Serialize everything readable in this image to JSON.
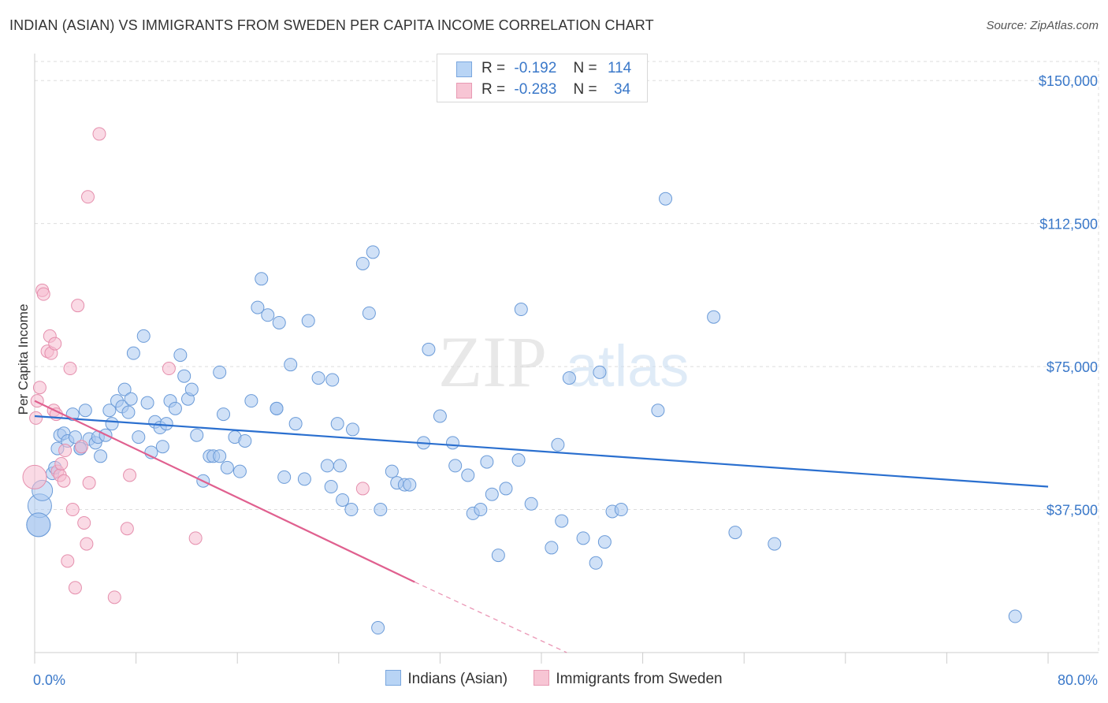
{
  "title": "INDIAN (ASIAN) VS IMMIGRANTS FROM SWEDEN PER CAPITA INCOME CORRELATION CHART",
  "source": "Source: ZipAtlas.com",
  "watermark": {
    "zip": "ZIP",
    "atlas": "atlas"
  },
  "stats_legend": [
    {
      "r_label": "R =",
      "r_value": "-0.192",
      "n_label": "N =",
      "n_value": "114",
      "fill": "#b8d4f5",
      "stroke": "#7aa7de"
    },
    {
      "r_label": "R =",
      "r_value": "-0.283",
      "n_label": "N =",
      "n_value": "34",
      "fill": "#f7c5d4",
      "stroke": "#e89ab3"
    }
  ],
  "bottom_legend": [
    {
      "label": "Indians (Asian)",
      "fill": "#b8d4f5",
      "stroke": "#7aa7de"
    },
    {
      "label": "Immigrants from Sweden",
      "fill": "#f7c5d4",
      "stroke": "#e89ab3"
    }
  ],
  "colors": {
    "blue_point": "#a9c9f0",
    "blue_stroke": "#6b9bd8",
    "blue_line": "#2a6fcf",
    "pink_point": "#f5bcd0",
    "pink_stroke": "#e58fad",
    "pink_line": "#e0608f",
    "tick_label": "#3a78c9",
    "grid": "#dddddd"
  },
  "chart_data": {
    "type": "scatter",
    "title": "INDIAN (ASIAN) VS IMMIGRANTS FROM SWEDEN PER CAPITA INCOME CORRELATION CHART",
    "xlabel": "",
    "ylabel": "Per Capita Income",
    "xlim": [
      0,
      80
    ],
    "ylim": [
      0,
      155000
    ],
    "x_tick_labels": [
      "0.0%",
      "80.0%"
    ],
    "y_ticks": [
      37500,
      75000,
      112500,
      150000
    ],
    "y_tick_labels": [
      "$37,500",
      "$75,000",
      "$112,500",
      "$150,000"
    ],
    "grid": true,
    "series": [
      {
        "name": "Indians (Asian)",
        "trend": {
          "x": [
            0,
            80
          ],
          "y": [
            62000,
            43500
          ]
        },
        "points": [
          [
            0.3,
            33500
          ],
          [
            0.4,
            38500
          ],
          [
            0.6,
            42500
          ],
          [
            1.4,
            47000
          ],
          [
            1.6,
            48500
          ],
          [
            1.8,
            53500
          ],
          [
            2.0,
            57000
          ],
          [
            2.3,
            57500
          ],
          [
            2.6,
            55500
          ],
          [
            3.0,
            62500
          ],
          [
            3.2,
            56500
          ],
          [
            3.6,
            53500
          ],
          [
            4.0,
            63500
          ],
          [
            4.3,
            56000
          ],
          [
            4.8,
            55000
          ],
          [
            5.0,
            56500
          ],
          [
            5.2,
            51500
          ],
          [
            5.6,
            57000
          ],
          [
            5.9,
            63500
          ],
          [
            6.1,
            60000
          ],
          [
            6.5,
            66000
          ],
          [
            6.9,
            64500
          ],
          [
            7.1,
            69000
          ],
          [
            7.4,
            63000
          ],
          [
            7.6,
            66500
          ],
          [
            7.8,
            78500
          ],
          [
            8.2,
            56500
          ],
          [
            8.6,
            83000
          ],
          [
            8.9,
            65500
          ],
          [
            9.2,
            52500
          ],
          [
            9.5,
            60500
          ],
          [
            9.9,
            59000
          ],
          [
            10.1,
            54000
          ],
          [
            10.4,
            60000
          ],
          [
            10.7,
            66000
          ],
          [
            11.1,
            64000
          ],
          [
            11.5,
            78000
          ],
          [
            11.8,
            72500
          ],
          [
            12.1,
            66500
          ],
          [
            12.4,
            69000
          ],
          [
            12.8,
            57000
          ],
          [
            13.3,
            45000
          ],
          [
            13.8,
            51500
          ],
          [
            14.1,
            51500
          ],
          [
            14.6,
            73500
          ],
          [
            14.9,
            62500
          ],
          [
            15.2,
            48500
          ],
          [
            15.8,
            56500
          ],
          [
            16.2,
            47500
          ],
          [
            16.6,
            55500
          ],
          [
            17.1,
            66000
          ],
          [
            17.6,
            90500
          ],
          [
            17.9,
            98000
          ],
          [
            18.4,
            88500
          ],
          [
            19.3,
            86500
          ],
          [
            19.1,
            64000
          ],
          [
            19.7,
            46000
          ],
          [
            20.2,
            75500
          ],
          [
            20.6,
            60000
          ],
          [
            21.3,
            45500
          ],
          [
            21.6,
            87000
          ],
          [
            22.4,
            72000
          ],
          [
            23.1,
            49000
          ],
          [
            23.5,
            71500
          ],
          [
            23.4,
            43500
          ],
          [
            23.9,
            60000
          ],
          [
            24.1,
            49000
          ],
          [
            24.3,
            40000
          ],
          [
            25.0,
            37500
          ],
          [
            25.1,
            58500
          ],
          [
            25.9,
            102000
          ],
          [
            26.4,
            89000
          ],
          [
            26.7,
            105000
          ],
          [
            27.3,
            37500
          ],
          [
            28.2,
            47500
          ],
          [
            28.6,
            44500
          ],
          [
            29.2,
            44000
          ],
          [
            29.6,
            44000
          ],
          [
            30.7,
            55000
          ],
          [
            31.1,
            79500
          ],
          [
            32.0,
            62000
          ],
          [
            33.0,
            55000
          ],
          [
            33.2,
            49000
          ],
          [
            34.2,
            46500
          ],
          [
            34.6,
            36500
          ],
          [
            35.2,
            37500
          ],
          [
            35.7,
            50000
          ],
          [
            36.1,
            41500
          ],
          [
            36.6,
            25500
          ],
          [
            37.2,
            43000
          ],
          [
            38.2,
            50500
          ],
          [
            38.4,
            90000
          ],
          [
            39.2,
            39000
          ],
          [
            40.8,
            27500
          ],
          [
            41.3,
            54500
          ],
          [
            41.6,
            34500
          ],
          [
            42.2,
            72000
          ],
          [
            43.3,
            30000
          ],
          [
            44.6,
            73500
          ],
          [
            45.0,
            29000
          ],
          [
            44.3,
            23500
          ],
          [
            45.6,
            37000
          ],
          [
            46.3,
            37500
          ],
          [
            49.2,
            63500
          ],
          [
            49.8,
            119000
          ],
          [
            53.6,
            88000
          ],
          [
            55.3,
            31500
          ],
          [
            58.4,
            28500
          ],
          [
            27.1,
            6500
          ],
          [
            77.4,
            9500
          ],
          [
            0.3,
            33500
          ],
          [
            3.6,
            53500
          ],
          [
            14.6,
            51500
          ],
          [
            19.1,
            64000
          ]
        ]
      },
      {
        "name": "Immigrants from Sweden",
        "trend": {
          "x": [
            0,
            30
          ],
          "y": [
            66000,
            18500
          ],
          "dashed_to": {
            "x": 42,
            "y": 0
          }
        },
        "points": [
          [
            0.0,
            46000
          ],
          [
            0.1,
            61500
          ],
          [
            0.2,
            66000
          ],
          [
            0.4,
            69500
          ],
          [
            0.6,
            95000
          ],
          [
            0.7,
            94000
          ],
          [
            1.0,
            79000
          ],
          [
            1.2,
            83000
          ],
          [
            1.3,
            78500
          ],
          [
            1.5,
            63500
          ],
          [
            1.6,
            81000
          ],
          [
            1.7,
            62500
          ],
          [
            1.8,
            47500
          ],
          [
            2.0,
            46500
          ],
          [
            2.1,
            49500
          ],
          [
            2.3,
            45000
          ],
          [
            2.4,
            53000
          ],
          [
            2.6,
            24000
          ],
          [
            2.8,
            74500
          ],
          [
            3.0,
            37500
          ],
          [
            3.2,
            17000
          ],
          [
            3.4,
            91000
          ],
          [
            3.7,
            54000
          ],
          [
            3.9,
            34000
          ],
          [
            4.1,
            28500
          ],
          [
            4.3,
            44500
          ],
          [
            4.2,
            119500
          ],
          [
            5.1,
            136000
          ],
          [
            6.3,
            14500
          ],
          [
            7.3,
            32500
          ],
          [
            7.5,
            46500
          ],
          [
            10.6,
            74500
          ],
          [
            12.7,
            30000
          ],
          [
            25.9,
            43000
          ]
        ]
      }
    ]
  }
}
